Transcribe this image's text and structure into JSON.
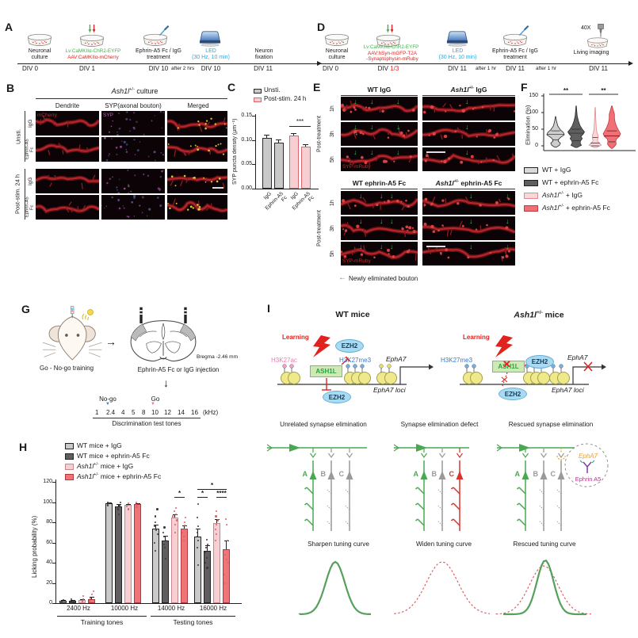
{
  "panelA": {
    "label": "A",
    "steps": {
      "s1": {
        "caption": "Neuronal\nculture",
        "div": "DIV 0"
      },
      "s2": {
        "green": "Lv:CaMKIIα-ChR2-EYFP",
        "red": "AAV:CaMKIIα-mCherry",
        "div": "DIV 1"
      },
      "s3": {
        "caption": "Ephrin-A5 Fc / IgG\ntreatment",
        "div": "DIV 10"
      },
      "gap": "after 2 hrs",
      "s4": {
        "caption": "LED\n(30 Hz, 10 min)",
        "div": "DIV 10"
      },
      "s5": {
        "caption": "Neuron\nfixation",
        "div": "DIV 11"
      }
    }
  },
  "panelD": {
    "label": "D",
    "steps": {
      "s1": {
        "caption": "Neuronal\nculture",
        "div": "DIV 0"
      },
      "s2": {
        "green": "Lv:CaMKIIα-ChR2-EYFP",
        "red": "AAV:hSyn-mGFP-T2A\n-Synaptophysin-mRuby",
        "div": "DIV ",
        "div_red": "1/3"
      },
      "s3": {
        "caption": "LED\n(30 Hz, 10 min)",
        "div": "DIV 11"
      },
      "gap1": "after 1 hr",
      "s4": {
        "caption": "Ephrin-A5 Fc / IgG\ntreatment",
        "div": "DIV 11"
      },
      "gap2": "after 1 hr",
      "s5": {
        "mag": "40X",
        "caption": "Living imaging",
        "div": "DIV 11"
      }
    }
  },
  "panelB": {
    "label": "B",
    "title": {
      "gene": "Ash1l",
      "sup": "+/-",
      "rest": " culture"
    },
    "columns": [
      "Dendrite",
      "SYP(axonal bouton)",
      "Merged"
    ],
    "groups": [
      "Unsti.",
      "Post-stim. 24 h"
    ],
    "rows": [
      "IgG",
      "Ephrin-A5\nFc",
      "IgG",
      "Ephrin-A5\nFc"
    ],
    "tags": {
      "mcherry": "mCherry",
      "syp": "SYP"
    }
  },
  "panelC": {
    "label": "C"
  },
  "panelE": {
    "label": "E",
    "axis": "Post-treatment",
    "rows": [
      "1h",
      "3h",
      "5h"
    ],
    "headers": [
      {
        "left": "WT IgG",
        "gene": "Ash1l",
        "sup": "+/-",
        "rest": " IgG"
      },
      {
        "left": "WT ephrin-A5 Fc",
        "gene": "Ash1l",
        "sup": "+/-",
        "rest": " ephrin-A5 Fc"
      }
    ],
    "tag": "SYP-mRuby",
    "arrow_note": "Newly eliminated bouton"
  },
  "panelF": {
    "label": "F",
    "legend": [
      {
        "plain": "WT + IgG"
      },
      {
        "plain": "WT + ephrin-A5 Fc"
      },
      {
        "gene": "Ash1l",
        "sup": "+/-",
        "rest": " + IgG"
      },
      {
        "gene": "Ash1l",
        "sup": "+/-",
        "rest": " + ephrin-A5 Fc"
      }
    ]
  },
  "panelG": {
    "label": "G",
    "training": "Go - No-go training",
    "injection": "Ephrin-A5 Fc or IgG injection",
    "bregma": "Bregma -2.46 mm",
    "nogo": "No-go",
    "go": "Go",
    "tones": [
      "1",
      "2.4",
      "4",
      "5",
      "8",
      "10",
      "12",
      "14",
      "16"
    ],
    "khz": "(kHz)",
    "scale_label": "Discrimination test tones"
  },
  "panelH": {
    "label": "H",
    "legend": [
      {
        "plain": "WT mice + IgG"
      },
      {
        "plain": "WT mice + ephrin-A5 Fc"
      },
      {
        "gene": "Ash1l",
        "sup": "+/-",
        "rest": " mice + IgG"
      },
      {
        "gene": "Ash1l",
        "sup": "+/-",
        "rest": " mice + ephrin-A5 Fc"
      }
    ]
  },
  "panelI": {
    "label": "I",
    "wt_title": "WT mice",
    "mut": {
      "gene": "Ash1l",
      "sup": "+/-",
      "rest": " mice"
    },
    "learning": "Learning",
    "h3k27ac": "H3K27ac",
    "h3k27me3": "H3K27me3",
    "ash1l": "ASH1L",
    "ezh2": "EZH2",
    "epha7": "EphA7",
    "loci": "EphA7 loci",
    "col_titles": [
      "Unrelated synapse elimination",
      "Synapse elimination defect",
      "Rescued synapse elimination"
    ],
    "letters": [
      "A",
      "B",
      "C"
    ],
    "epha7_tag": "EphA7",
    "ephrin_tag": "Ephrin A5",
    "curves": [
      "Sharpen tuning curve",
      "Widen tuning curve",
      "Rescued tuning curve"
    ]
  },
  "chart_data": [
    {
      "id": "C",
      "type": "bar",
      "legend": [
        "Unsti.",
        "Post-stim. 24 h"
      ],
      "ylabel": "SYP puncta density (μm⁻¹)",
      "categories": [
        "IgG",
        "Ephrin-A5 Fc",
        "IgG",
        "Ephrin-A5 Fc"
      ],
      "values": [
        0.105,
        0.094,
        0.11,
        0.087
      ],
      "errors": [
        0.006,
        0.007,
        0.004,
        0.005
      ],
      "bar_fills": [
        "#c9c9c9",
        "#c9c9c9",
        "#f7ced1",
        "#f7ced1"
      ],
      "bar_strokes": [
        "#2a2a2a",
        "#2a2a2a",
        "#d9666c",
        "#d9666c"
      ],
      "ylim": [
        0,
        0.15
      ],
      "yticks": [
        0,
        0.05,
        0.1,
        0.15
      ],
      "significance": [
        {
          "bars": [
            2,
            3
          ],
          "label": "***"
        }
      ]
    },
    {
      "id": "F",
      "type": "violin",
      "ylabel": "Elimination (%)",
      "ylim": [
        -15,
        150
      ],
      "yticks": [
        0,
        50,
        100,
        150
      ],
      "series": [
        {
          "name": "WT + IgG",
          "fill": "#cecece",
          "stroke": "#2a2a2a",
          "median": 35,
          "q1": 18,
          "q3": 45,
          "profile": [
            [
              88,
              0.02
            ],
            [
              75,
              0.1
            ],
            [
              60,
              0.25
            ],
            [
              48,
              0.55
            ],
            [
              40,
              0.9
            ],
            [
              33,
              1
            ],
            [
              26,
              0.6
            ],
            [
              20,
              0.35
            ],
            [
              14,
              0.3
            ],
            [
              8,
              0.55
            ],
            [
              2,
              0.45
            ],
            [
              -4,
              0.1
            ]
          ]
        },
        {
          "name": "WT + ephrin-A5 Fc",
          "fill": "#5f5f5f",
          "stroke": "#2a2a2a",
          "median": 38,
          "q1": 15,
          "q3": 50,
          "profile": [
            [
              120,
              0.02
            ],
            [
              105,
              0.06
            ],
            [
              90,
              0.12
            ],
            [
              75,
              0.25
            ],
            [
              60,
              0.45
            ],
            [
              50,
              0.7
            ],
            [
              42,
              0.95
            ],
            [
              35,
              0.8
            ],
            [
              28,
              0.55
            ],
            [
              22,
              0.7
            ],
            [
              15,
              0.5
            ],
            [
              8,
              0.45
            ],
            [
              2,
              0.6
            ],
            [
              -5,
              0.1
            ]
          ]
        },
        {
          "name": "Ash1l+/- + IgG",
          "fill": "#f8d7d9",
          "stroke": "#e2898e",
          "median": 8,
          "q1": 0,
          "q3": 25,
          "profile": [
            [
              115,
              0.02
            ],
            [
              95,
              0.05
            ],
            [
              75,
              0.08
            ],
            [
              55,
              0.12
            ],
            [
              40,
              0.2
            ],
            [
              30,
              0.35
            ],
            [
              22,
              0.3
            ],
            [
              15,
              0.25
            ],
            [
              8,
              0.45
            ],
            [
              2,
              0.7
            ],
            [
              -5,
              0.15
            ]
          ]
        },
        {
          "name": "Ash1l+/- + ephrin-A5 Fc",
          "fill": "#ef7175",
          "stroke": "#c2383e",
          "median": 30,
          "q1": 12,
          "q3": 45,
          "profile": [
            [
              120,
              0.03
            ],
            [
              108,
              0.15
            ],
            [
              95,
              0.3
            ],
            [
              82,
              0.3
            ],
            [
              68,
              0.4
            ],
            [
              55,
              0.6
            ],
            [
              45,
              0.8
            ],
            [
              36,
              1
            ],
            [
              28,
              0.85
            ],
            [
              20,
              0.5
            ],
            [
              12,
              0.45
            ],
            [
              5,
              0.5
            ],
            [
              -2,
              0.3
            ],
            [
              -8,
              0.05
            ]
          ]
        }
      ],
      "significance": [
        {
          "violins": [
            0,
            1
          ],
          "label": "**"
        },
        {
          "violins": [
            2,
            3
          ],
          "label": "**"
        }
      ]
    },
    {
      "id": "H",
      "type": "grouped_bar",
      "ylabel": "Licking probability (%)",
      "ylim": [
        0,
        120
      ],
      "yticks": [
        0,
        20,
        40,
        60,
        80,
        100,
        120
      ],
      "groups": [
        "2400 Hz",
        "10000 Hz",
        "14000 Hz",
        "16000 Hz"
      ],
      "sections": [
        {
          "label": "Training tones",
          "groups": [
            0,
            1
          ]
        },
        {
          "label": "Testing tones",
          "groups": [
            2,
            3
          ]
        }
      ],
      "series_names": [
        "WT mice + IgG",
        "WT mice + ephrin-A5 Fc",
        "Ash1l+/- mice + IgG",
        "Ash1l+/- mice + ephrin-A5 Fc"
      ],
      "series_fills": [
        "#c9c9c9",
        "#5f5f5f",
        "#f7ced1",
        "#ef7478"
      ],
      "series_strokes": [
        "#222222",
        "#222222",
        "#c4878c",
        "#b2383e"
      ],
      "values": [
        [
          2,
          2,
          3,
          4
        ],
        [
          99,
          96,
          97,
          98
        ],
        [
          74,
          62,
          85,
          74
        ],
        [
          66,
          52,
          79,
          53
        ]
      ],
      "errors": [
        [
          1,
          1,
          1,
          2
        ],
        [
          1,
          2,
          1,
          1
        ],
        [
          4,
          5,
          3,
          3
        ],
        [
          8,
          5,
          4,
          9
        ]
      ],
      "points": [
        [
          [
            1,
            3
          ],
          [
            1,
            2,
            4
          ],
          [
            2,
            4,
            7
          ],
          [
            2,
            5,
            9,
            12
          ]
        ],
        [
          [
            97,
            99,
            100
          ],
          [
            88,
            93,
            97,
            100
          ],
          [
            93,
            96,
            99
          ],
          [
            95,
            97,
            100
          ]
        ],
        [
          [
            52,
            60,
            68,
            72,
            76,
            80,
            86,
            93
          ],
          [
            44,
            55,
            58,
            62,
            66,
            70,
            75
          ],
          [
            70,
            78,
            82,
            86,
            88,
            91,
            94
          ],
          [
            62,
            66,
            70,
            73,
            77,
            80,
            85
          ]
        ],
        [
          [
            38,
            55,
            62,
            66,
            70,
            76,
            85,
            98
          ],
          [
            35,
            40,
            45,
            50,
            55,
            58,
            63
          ],
          [
            62,
            68,
            73,
            78,
            82,
            86,
            91
          ],
          [
            20,
            28,
            40,
            43,
            48,
            62,
            78,
            83
          ]
        ]
      ],
      "significance": [
        {
          "group": 2,
          "bars": [
            2,
            3
          ],
          "label": "*",
          "level": 0
        },
        {
          "group": 3,
          "bars": [
            0,
            1
          ],
          "label": "*",
          "level": 0
        },
        {
          "group": 3,
          "bars": [
            2,
            3
          ],
          "label": "****",
          "level": 0
        },
        {
          "group": 3,
          "bars": [
            0,
            3
          ],
          "label": "*",
          "level": 1
        }
      ]
    }
  ]
}
